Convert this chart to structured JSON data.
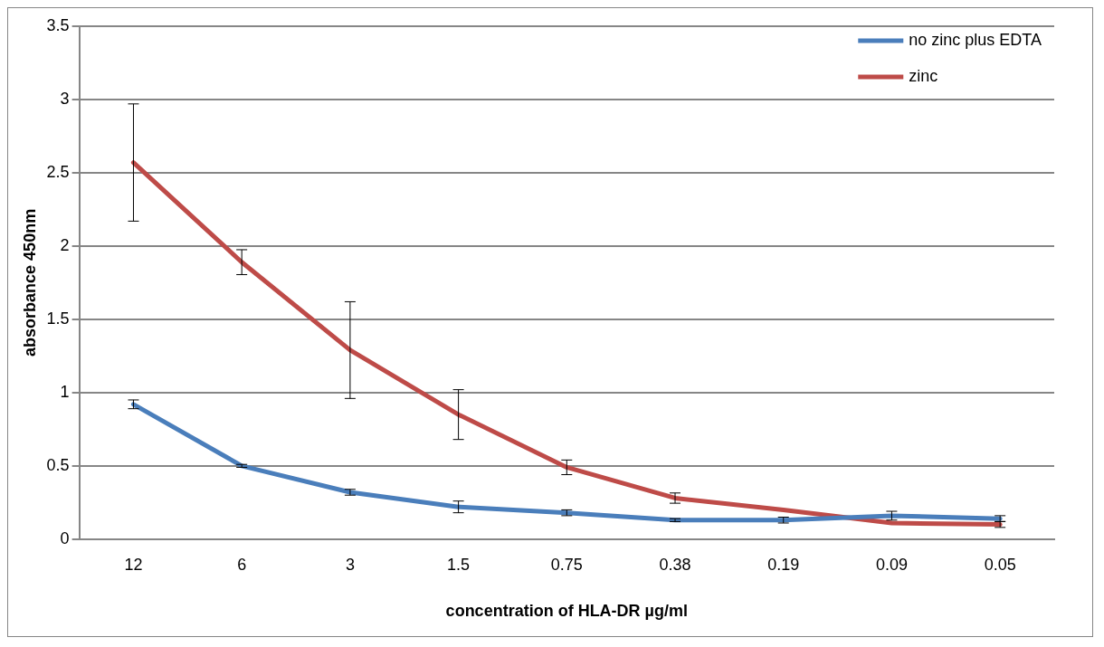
{
  "chart_data": {
    "type": "line",
    "xlabel": "concentration of HLA-DR µg/ml",
    "ylabel": "absorbance 450nm",
    "categories": [
      "12",
      "6",
      "3",
      "1.5",
      "0.75",
      "0.38",
      "0.19",
      "0.09",
      "0.05"
    ],
    "series": [
      {
        "name": "no zinc plus EDTA",
        "color": "#4a7ebb",
        "values": [
          0.92,
          0.5,
          0.32,
          0.22,
          0.18,
          0.13,
          0.13,
          0.16,
          0.14
        ],
        "errors": [
          0.03,
          0.01,
          0.02,
          0.04,
          0.02,
          0.01,
          0.02,
          0.03,
          0.02
        ]
      },
      {
        "name": "zinc",
        "color": "#be4b48",
        "values": [
          2.57,
          1.89,
          1.29,
          0.85,
          0.49,
          0.28,
          0.2,
          0.11,
          0.1
        ],
        "errors": [
          0.4,
          0.085,
          0.33,
          0.17,
          0.05,
          0.035,
          null,
          null,
          0.02
        ]
      }
    ],
    "ylim": [
      0,
      3.5
    ],
    "yticks": [
      0,
      0.5,
      1,
      1.5,
      2,
      2.5,
      3,
      3.5
    ],
    "grid": "y",
    "legend": "top right",
    "marker": "none",
    "line_style": "solid"
  }
}
